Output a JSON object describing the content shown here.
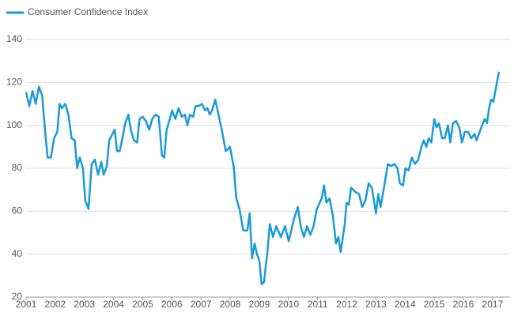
{
  "chart_data": {
    "type": "line",
    "x": [
      2001.0,
      2001.11,
      2001.22,
      2001.33,
      2001.44,
      2001.55,
      2001.66,
      2001.74,
      2001.85,
      2001.96,
      2002.07,
      2002.15,
      2002.23,
      2002.34,
      2002.45,
      2002.56,
      2002.67,
      2002.75,
      2002.84,
      2002.95,
      2003.03,
      2003.14,
      2003.25,
      2003.36,
      2003.47,
      2003.58,
      2003.66,
      2003.77,
      2003.85,
      2003.96,
      2004.04,
      2004.12,
      2004.21,
      2004.29,
      2004.4,
      2004.51,
      2004.59,
      2004.7,
      2004.81,
      2004.89,
      2005.0,
      2005.11,
      2005.22,
      2005.33,
      2005.44,
      2005.55,
      2005.66,
      2005.74,
      2005.82,
      2005.93,
      2006.01,
      2006.12,
      2006.23,
      2006.34,
      2006.45,
      2006.53,
      2006.62,
      2006.73,
      2006.81,
      2006.92,
      2007.03,
      2007.14,
      2007.22,
      2007.3,
      2007.38,
      2007.49,
      2007.71,
      2007.85,
      2007.99,
      2008.12,
      2008.21,
      2008.32,
      2008.45,
      2008.59,
      2008.67,
      2008.75,
      2008.84,
      2008.92,
      2009.0,
      2009.08,
      2009.16,
      2009.27,
      2009.36,
      2009.47,
      2009.58,
      2009.74,
      2009.88,
      2010.01,
      2010.18,
      2010.32,
      2010.42,
      2010.53,
      2010.64,
      2010.75,
      2010.86,
      2010.97,
      2011.14,
      2011.22,
      2011.3,
      2011.41,
      2011.52,
      2011.63,
      2011.71,
      2011.79,
      2011.93,
      2011.99,
      2012.07,
      2012.15,
      2012.29,
      2012.42,
      2012.53,
      2012.64,
      2012.75,
      2012.86,
      2013.0,
      2013.08,
      2013.16,
      2013.3,
      2013.41,
      2013.52,
      2013.63,
      2013.74,
      2013.82,
      2013.93,
      2014.01,
      2014.12,
      2014.23,
      2014.34,
      2014.45,
      2014.56,
      2014.64,
      2014.73,
      2014.81,
      2014.9,
      2015.0,
      2015.08,
      2015.16,
      2015.27,
      2015.36,
      2015.47,
      2015.55,
      2015.64,
      2015.75,
      2015.86,
      2015.95,
      2016.05,
      2016.16,
      2016.27,
      2016.38,
      2016.45,
      2016.56,
      2016.64,
      2016.73,
      2016.81,
      2016.88,
      2016.95,
      2017.03,
      2017.11,
      2017.22
    ],
    "series": [
      {
        "name": "Consumer Confidence Index",
        "color": "#1a9ad6",
        "values": [
          115.5,
          109,
          116,
          110,
          118,
          114,
          96,
          85,
          85,
          94,
          97,
          110,
          108,
          110,
          105,
          94,
          93,
          80,
          85,
          80,
          65,
          61,
          82,
          84,
          77,
          83,
          77,
          81,
          93,
          96,
          98,
          88,
          88,
          93,
          101,
          105,
          98,
          93,
          92,
          103,
          104,
          102,
          98,
          103,
          105,
          104,
          86,
          85,
          98,
          103,
          107,
          103,
          108,
          104,
          105,
          100,
          105,
          104,
          109,
          109,
          110,
          107,
          108,
          105,
          107,
          112,
          98,
          88,
          90,
          81,
          66,
          61,
          51,
          51,
          59,
          38,
          45,
          40,
          37,
          26,
          27,
          40,
          54,
          48,
          53,
          48,
          53,
          46,
          56,
          62,
          53,
          48,
          53,
          49,
          53,
          61,
          66,
          72,
          64,
          66,
          58,
          45,
          48,
          41,
          54,
          64,
          63,
          71,
          69,
          68,
          62,
          65,
          73,
          71,
          59,
          68,
          62,
          73,
          82,
          81,
          82,
          80,
          73,
          72,
          80,
          79,
          85,
          82,
          84,
          90,
          93,
          90,
          94,
          92,
          103,
          99,
          101,
          94,
          94,
          100,
          92,
          101,
          102,
          99,
          92,
          97,
          97,
          94,
          96,
          93,
          97,
          100,
          103,
          101,
          108,
          112,
          111,
          117,
          125
        ]
      }
    ],
    "xlim": [
      2001,
      2017.6
    ],
    "xticks": [
      2001,
      2002,
      2003,
      2004,
      2005,
      2006,
      2007,
      2008,
      2009,
      2010,
      2011,
      2012,
      2013,
      2014,
      2015,
      2016,
      2017
    ],
    "ylim": [
      20,
      140
    ],
    "yticks": [
      20,
      40,
      60,
      80,
      100,
      120,
      140
    ],
    "grid": true,
    "legend": "top-left"
  }
}
